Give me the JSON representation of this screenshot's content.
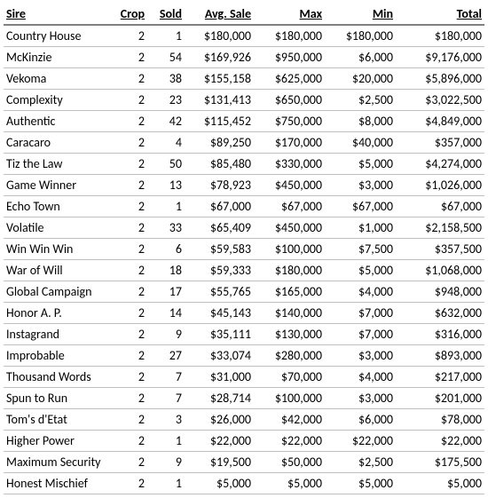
{
  "table": {
    "columns": [
      "Sire",
      "Crop",
      "Sold",
      "Avg. Sale",
      "Max",
      "Min",
      "Total"
    ],
    "column_align": [
      "left",
      "right",
      "right",
      "right",
      "right",
      "right",
      "right"
    ],
    "header_fontweight": "bold",
    "header_underline": true,
    "header_border_color": "#808080",
    "row_border_color": "#c0c0c0",
    "background_color": "#ffffff",
    "text_color": "#000000",
    "fontsize": 14,
    "rows": [
      [
        "Country House",
        "2",
        "1",
        "$180,000",
        "$180,000",
        "$180,000",
        "$180,000"
      ],
      [
        "McKinzie",
        "2",
        "54",
        "$169,926",
        "$950,000",
        "$6,000",
        "$9,176,000"
      ],
      [
        "Vekoma",
        "2",
        "38",
        "$155,158",
        "$625,000",
        "$20,000",
        "$5,896,000"
      ],
      [
        "Complexity",
        "2",
        "23",
        "$131,413",
        "$650,000",
        "$2,500",
        "$3,022,500"
      ],
      [
        "Authentic",
        "2",
        "42",
        "$115,452",
        "$750,000",
        "$8,000",
        "$4,849,000"
      ],
      [
        "Caracaro",
        "2",
        "4",
        "$89,250",
        "$170,000",
        "$40,000",
        "$357,000"
      ],
      [
        "Tiz the Law",
        "2",
        "50",
        "$85,480",
        "$330,000",
        "$5,000",
        "$4,274,000"
      ],
      [
        "Game Winner",
        "2",
        "13",
        "$78,923",
        "$450,000",
        "$3,000",
        "$1,026,000"
      ],
      [
        "Echo Town",
        "2",
        "1",
        "$67,000",
        "$67,000",
        "$67,000",
        "$67,000"
      ],
      [
        "Volatile",
        "2",
        "33",
        "$65,409",
        "$450,000",
        "$1,000",
        "$2,158,500"
      ],
      [
        "Win Win Win",
        "2",
        "6",
        "$59,583",
        "$100,000",
        "$7,500",
        "$357,500"
      ],
      [
        "War of Will",
        "2",
        "18",
        "$59,333",
        "$180,000",
        "$5,000",
        "$1,068,000"
      ],
      [
        "Global Campaign",
        "2",
        "17",
        "$55,765",
        "$165,000",
        "$4,000",
        "$948,000"
      ],
      [
        "Honor A. P.",
        "2",
        "14",
        "$45,143",
        "$140,000",
        "$7,000",
        "$632,000"
      ],
      [
        "Instagrand",
        "2",
        "9",
        "$35,111",
        "$130,000",
        "$7,000",
        "$316,000"
      ],
      [
        "Improbable",
        "2",
        "27",
        "$33,074",
        "$280,000",
        "$3,000",
        "$893,000"
      ],
      [
        "Thousand Words",
        "2",
        "7",
        "$31,000",
        "$70,000",
        "$4,000",
        "$217,000"
      ],
      [
        "Spun to Run",
        "2",
        "7",
        "$28,714",
        "$100,000",
        "$3,000",
        "$201,000"
      ],
      [
        "Tom's d'Etat",
        "2",
        "3",
        "$26,000",
        "$42,000",
        "$6,000",
        "$78,000"
      ],
      [
        "Higher Power",
        "2",
        "1",
        "$22,000",
        "$22,000",
        "$22,000",
        "$22,000"
      ],
      [
        "Maximum Security",
        "2",
        "9",
        "$19,500",
        "$50,000",
        "$2,500",
        "$175,500"
      ],
      [
        "Honest Mischief",
        "2",
        "1",
        "$5,000",
        "$5,000",
        "$5,000",
        "$5,000"
      ]
    ]
  }
}
